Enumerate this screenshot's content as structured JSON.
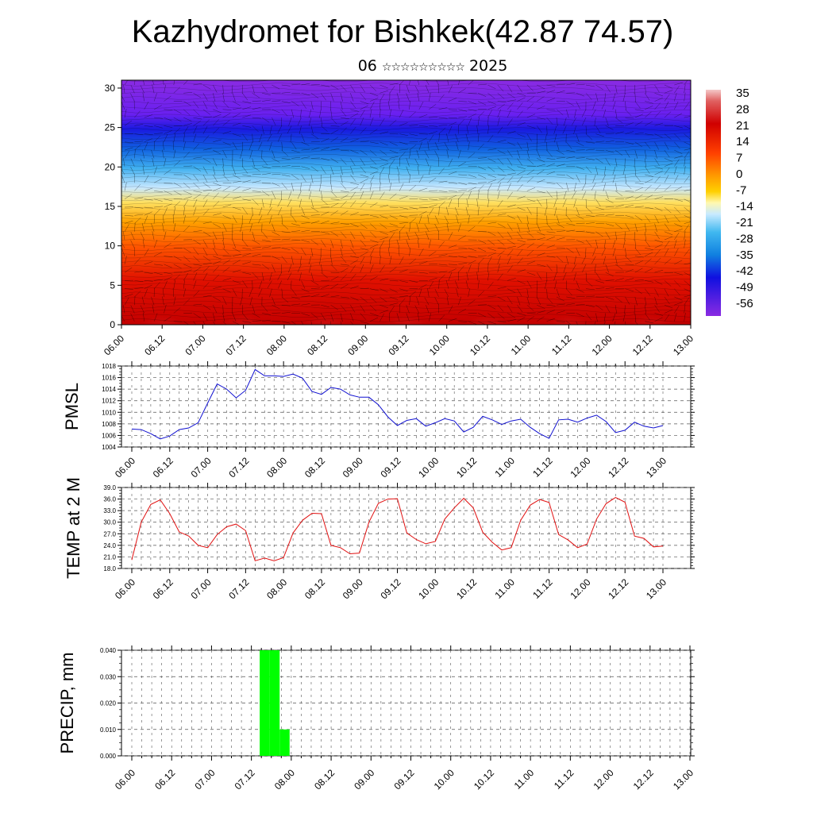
{
  "header": {
    "title": "Kazhydromet for Bishkek(42.87 74.57)",
    "subtitle_day": "06",
    "subtitle_stars": "☆☆☆☆☆☆☆☆☆",
    "subtitle_year": "2025"
  },
  "colors": {
    "pmsl_line": "#1010d0",
    "temp_line": "#e01010",
    "precip_bar": "#00ff00",
    "grid": "#555555"
  },
  "chart_data": [
    {
      "id": "profile",
      "type": "heatmap",
      "title": "",
      "y_ticks": [
        "0",
        "5",
        "10",
        "15",
        "20",
        "25",
        "30"
      ],
      "ylim": [
        0,
        31
      ],
      "x_ticks": [
        "06.00",
        "06.12",
        "07.00",
        "07.12",
        "08.00",
        "08.12",
        "09.00",
        "09.12",
        "10.00",
        "10.12",
        "11.00",
        "11.12",
        "12.00",
        "12.12",
        "13.00"
      ],
      "colorbar_labels": [
        "35",
        "28",
        "21",
        "14",
        "7",
        "0",
        "-7",
        "-14",
        "-21",
        "-28",
        "-35",
        "-42",
        "-49",
        "-56"
      ],
      "colorbar_range": [
        -63,
        42
      ],
      "overlay": "wind barbs",
      "grid": false
    },
    {
      "id": "pmsl",
      "type": "line",
      "ylabel": "PMSL",
      "y_ticks": [
        "1004",
        "1006",
        "1008",
        "1010",
        "1012",
        "1014",
        "1016",
        "1018"
      ],
      "ylim": [
        1004,
        1018
      ],
      "x_ticks": [
        "06.00",
        "06.12",
        "07.00",
        "07.12",
        "08.00",
        "08.12",
        "09.00",
        "09.12",
        "10.00",
        "10.12",
        "11.00",
        "11.12",
        "12.00",
        "12.12",
        "13.00"
      ],
      "step_hours": 3,
      "values": [
        1007.1,
        1007.0,
        1006.3,
        1005.4,
        1005.9,
        1007.0,
        1007.3,
        1008.2,
        1011.6,
        1014.9,
        1014.0,
        1012.5,
        1013.8,
        1017.4,
        1016.3,
        1016.3,
        1016.2,
        1016.6,
        1015.9,
        1013.6,
        1013.1,
        1014.3,
        1014.0,
        1013.0,
        1012.6,
        1012.6,
        1011.3,
        1009.2,
        1007.7,
        1008.6,
        1008.9,
        1007.6,
        1008.2,
        1008.9,
        1008.5,
        1006.6,
        1007.4,
        1009.3,
        1008.7,
        1007.9,
        1008.5,
        1008.8,
        1007.4,
        1006.3,
        1005.5,
        1008.7,
        1008.8,
        1008.3,
        1009.0,
        1009.5,
        1008.4,
        1006.5,
        1006.9,
        1008.3,
        1007.6,
        1007.3,
        1007.7
      ],
      "grid": true
    },
    {
      "id": "temp",
      "type": "line",
      "ylabel": "TEMP at 2 M",
      "y_ticks": [
        "18.0",
        "21.0",
        "24.0",
        "27.0",
        "30.0",
        "33.0",
        "36.0",
        "39.0"
      ],
      "ylim": [
        18,
        39
      ],
      "x_ticks": [
        "06.00",
        "06.12",
        "07.00",
        "07.12",
        "08.00",
        "08.12",
        "09.00",
        "09.12",
        "10.00",
        "10.12",
        "11.00",
        "11.12",
        "12.00",
        "12.12",
        "13.00"
      ],
      "step_hours": 3,
      "values": [
        20.2,
        30.0,
        34.6,
        35.8,
        32.2,
        27.5,
        26.4,
        24.0,
        23.4,
        26.8,
        28.8,
        29.5,
        27.8,
        20.0,
        20.7,
        20.0,
        20.8,
        27.2,
        30.5,
        32.3,
        32.2,
        24.0,
        23.4,
        21.8,
        22.0,
        30.0,
        34.9,
        36.0,
        36.1,
        27.2,
        25.5,
        24.4,
        25.0,
        30.8,
        33.7,
        36.2,
        33.7,
        27.4,
        24.8,
        22.8,
        23.4,
        30.5,
        34.4,
        35.9,
        35.1,
        26.8,
        25.4,
        23.4,
        24.3,
        30.8,
        34.8,
        36.4,
        35.2,
        26.4,
        25.8,
        23.6,
        23.8
      ],
      "grid": true
    },
    {
      "id": "precip",
      "type": "bar",
      "ylabel": "PRECIP, mm",
      "y_ticks": [
        "0.000",
        "0.010",
        "0.020",
        "0.030",
        "0.040"
      ],
      "ylim": [
        0,
        0.04
      ],
      "x_ticks": [
        "06.00",
        "06.12",
        "07.00",
        "07.12",
        "08.00",
        "08.12",
        "09.00",
        "09.12",
        "10.00",
        "10.12",
        "11.00",
        "11.12",
        "12.00",
        "12.12",
        "13.00"
      ],
      "step_hours": 3,
      "bars": [
        {
          "hour": 39,
          "value": 0.04
        },
        {
          "hour": 42,
          "value": 0.04
        },
        {
          "hour": 45,
          "value": 0.01
        }
      ],
      "grid": true
    }
  ]
}
